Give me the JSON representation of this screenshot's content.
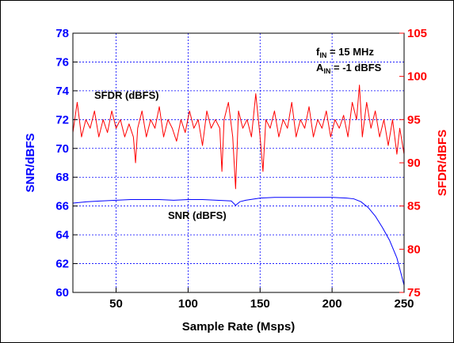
{
  "chart_data": {
    "type": "line",
    "xlabel": "Sample Rate (Msps)",
    "ylabel_left": "SNR/dBFS",
    "ylabel_right": "SFDR/dBFS",
    "xlim": [
      20,
      250
    ],
    "ylim_left": [
      60,
      78
    ],
    "ylim_right": [
      75,
      105
    ],
    "x_ticks": [
      "50",
      "100",
      "150",
      "200",
      "250"
    ],
    "y_ticks_left": [
      "60",
      "62",
      "64",
      "66",
      "68",
      "70",
      "72",
      "74",
      "76",
      "78"
    ],
    "y_ticks_right": [
      "75",
      "80",
      "85",
      "90",
      "95",
      "100",
      "105"
    ],
    "grid": true,
    "annotations": [
      {
        "base": "f",
        "sub": "IN",
        "text": " = 15 MHz"
      },
      {
        "base": "A",
        "sub": "IN",
        "text": " = -1 dBFS"
      }
    ],
    "series": [
      {
        "name": "SNR (dBFS)",
        "axis": "left",
        "color": "#0000ff",
        "points": [
          [
            20,
            66.2
          ],
          [
            30,
            66.3
          ],
          [
            40,
            66.35
          ],
          [
            50,
            66.4
          ],
          [
            60,
            66.45
          ],
          [
            70,
            66.45
          ],
          [
            80,
            66.45
          ],
          [
            90,
            66.4
          ],
          [
            100,
            66.45
          ],
          [
            110,
            66.45
          ],
          [
            120,
            66.4
          ],
          [
            130,
            66.35
          ],
          [
            133,
            66.05
          ],
          [
            136,
            66.3
          ],
          [
            140,
            66.4
          ],
          [
            150,
            66.55
          ],
          [
            160,
            66.6
          ],
          [
            170,
            66.6
          ],
          [
            180,
            66.6
          ],
          [
            190,
            66.6
          ],
          [
            200,
            66.6
          ],
          [
            210,
            66.55
          ],
          [
            215,
            66.5
          ],
          [
            220,
            66.3
          ],
          [
            225,
            65.9
          ],
          [
            230,
            65.3
          ],
          [
            235,
            64.5
          ],
          [
            240,
            63.6
          ],
          [
            245,
            62.4
          ],
          [
            250,
            60.5
          ]
        ]
      },
      {
        "name": "SFDR (dBFS)",
        "axis": "right",
        "color": "#ff0000",
        "points": [
          [
            20,
            93.5
          ],
          [
            23,
            97
          ],
          [
            26,
            93
          ],
          [
            29,
            95
          ],
          [
            32,
            94
          ],
          [
            35,
            96
          ],
          [
            38,
            93
          ],
          [
            41,
            95
          ],
          [
            44,
            93.5
          ],
          [
            47,
            96
          ],
          [
            50,
            94
          ],
          [
            53,
            95
          ],
          [
            56,
            93
          ],
          [
            59,
            94.5
          ],
          [
            62,
            93
          ],
          [
            63.5,
            90
          ],
          [
            65,
            94
          ],
          [
            68,
            96
          ],
          [
            71,
            93
          ],
          [
            74,
            95
          ],
          [
            77,
            94
          ],
          [
            80,
            96.5
          ],
          [
            83,
            93
          ],
          [
            86,
            95
          ],
          [
            89,
            94
          ],
          [
            92,
            92.5
          ],
          [
            95,
            95
          ],
          [
            98,
            93.5
          ],
          [
            101,
            96
          ],
          [
            104,
            94
          ],
          [
            107,
            95
          ],
          [
            110,
            92
          ],
          [
            113,
            96
          ],
          [
            116,
            94
          ],
          [
            119,
            95
          ],
          [
            122,
            94
          ],
          [
            123.5,
            89
          ],
          [
            125,
            95
          ],
          [
            128,
            97
          ],
          [
            131,
            93
          ],
          [
            133,
            87
          ],
          [
            135,
            96
          ],
          [
            138,
            94
          ],
          [
            141,
            95
          ],
          [
            144,
            93
          ],
          [
            147,
            98
          ],
          [
            150,
            93
          ],
          [
            152,
            89
          ],
          [
            154,
            95
          ],
          [
            157,
            94
          ],
          [
            160,
            96
          ],
          [
            163,
            93
          ],
          [
            166,
            95
          ],
          [
            169,
            94
          ],
          [
            172,
            97
          ],
          [
            175,
            93
          ],
          [
            178,
            95
          ],
          [
            181,
            94
          ],
          [
            184,
            96.5
          ],
          [
            187,
            93
          ],
          [
            190,
            95
          ],
          [
            193,
            94
          ],
          [
            196,
            96
          ],
          [
            199,
            93
          ],
          [
            202,
            95
          ],
          [
            205,
            94
          ],
          [
            208,
            95.5
          ],
          [
            211,
            93
          ],
          [
            214,
            97
          ],
          [
            217,
            95
          ],
          [
            219,
            99
          ],
          [
            221,
            93
          ],
          [
            224,
            97
          ],
          [
            227,
            94
          ],
          [
            230,
            96
          ],
          [
            233,
            93
          ],
          [
            236,
            95
          ],
          [
            239,
            92
          ],
          [
            242,
            95
          ],
          [
            245,
            91
          ],
          [
            247,
            94
          ],
          [
            250,
            91
          ]
        ]
      }
    ]
  }
}
